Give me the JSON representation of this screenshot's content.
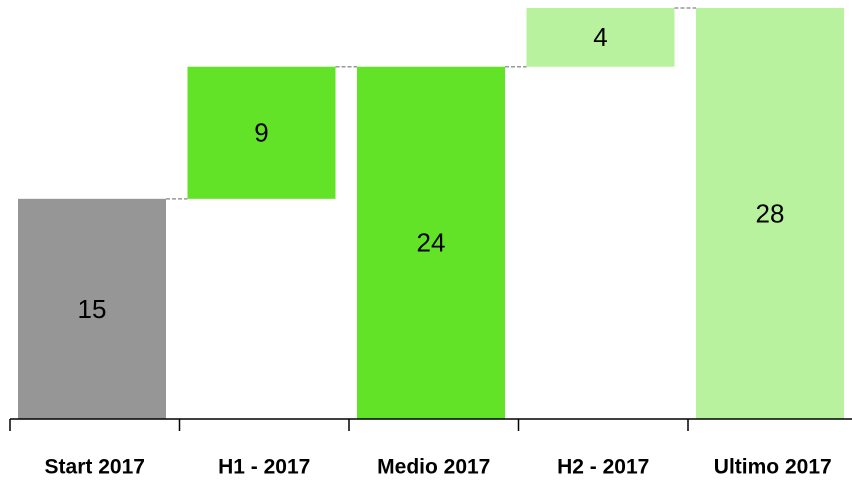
{
  "chart_data": {
    "type": "waterfall",
    "categories": [
      "Start 2017",
      "H1 - 2017",
      "Medio 2017",
      "H2 - 2017",
      "Ultimo 2017"
    ],
    "values": [
      15,
      9,
      24,
      4,
      28
    ],
    "measure": [
      "absolute",
      "relative",
      "absolute",
      "relative",
      "absolute"
    ],
    "colors": [
      "#969696",
      "#62e327",
      "#62e327",
      "#b8f29e",
      "#b8f29e"
    ]
  }
}
